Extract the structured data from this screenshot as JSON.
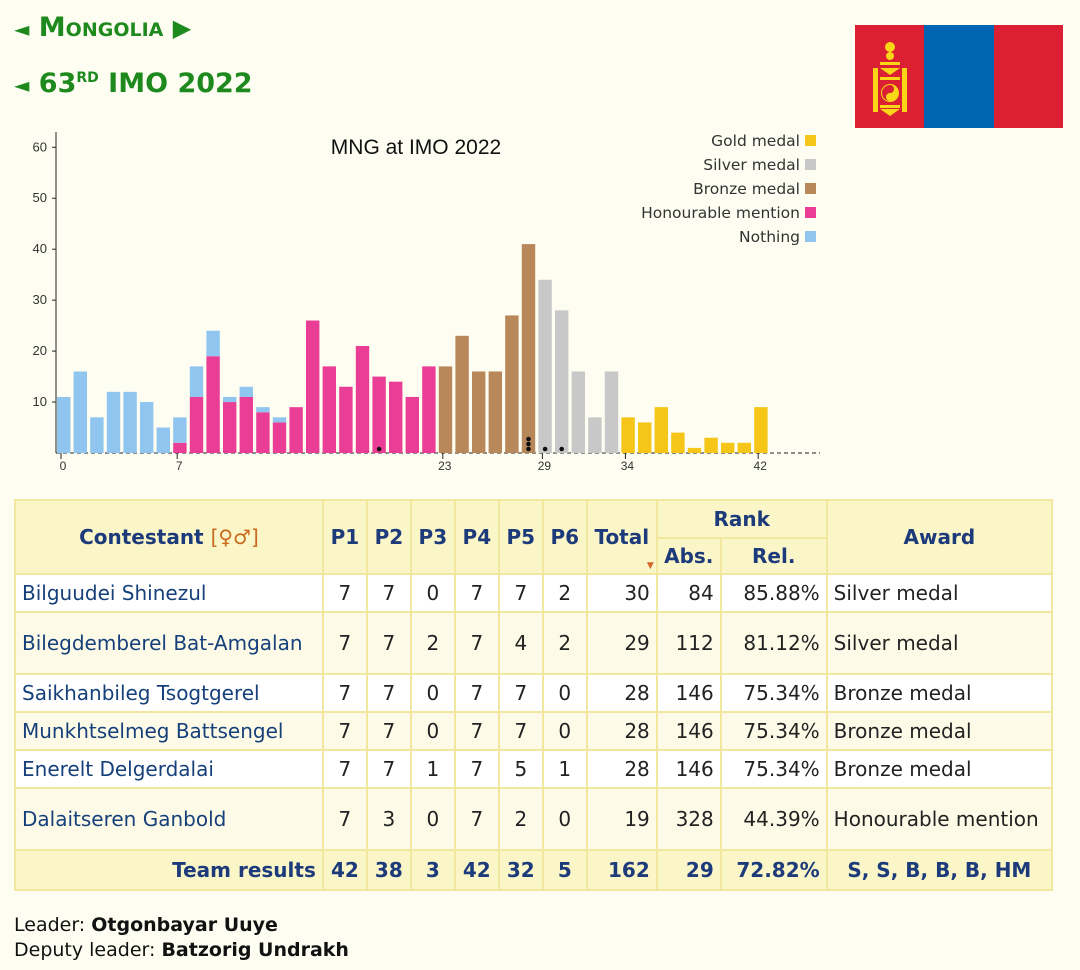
{
  "nav": {
    "country": "Mongolia",
    "edition_num": "63",
    "edition_sup": "RD",
    "edition_rest": " IMO 2022"
  },
  "flag_colors": [
    "#da2032",
    "#0066b3",
    "#da2032"
  ],
  "chart_data": {
    "type": "bar",
    "title": "MNG at IMO 2022",
    "xlabel": "",
    "ylabel": "",
    "ylim": [
      0,
      63
    ],
    "xlim": [
      0,
      42
    ],
    "yticks": [
      10,
      20,
      30,
      40,
      50,
      60
    ],
    "xticks": [
      0,
      7,
      23,
      29,
      34,
      42
    ],
    "legend_position": "top-right",
    "legend": [
      {
        "label": "Gold medal",
        "color": "#f5c518"
      },
      {
        "label": "Silver medal",
        "color": "#c8c8c8"
      },
      {
        "label": "Bronze medal",
        "color": "#b8875a"
      },
      {
        "label": "Honourable mention",
        "color": "#ea3e96"
      },
      {
        "label": "Nothing",
        "color": "#8fc5ef"
      }
    ],
    "x": [
      0,
      1,
      2,
      3,
      4,
      5,
      6,
      7,
      8,
      9,
      10,
      11,
      12,
      13,
      14,
      15,
      16,
      17,
      18,
      19,
      20,
      21,
      22,
      23,
      24,
      25,
      26,
      27,
      28,
      29,
      30,
      31,
      32,
      33,
      34,
      35,
      36,
      37,
      38,
      39,
      40,
      41,
      42
    ],
    "series": [
      {
        "name": "Honourable mention",
        "values": [
          0,
          0,
          0,
          0,
          0,
          0,
          0,
          2,
          11,
          19,
          10,
          11,
          8,
          6,
          9,
          26,
          17,
          13,
          21,
          15,
          14,
          11,
          17,
          0,
          0,
          0,
          0,
          0,
          0,
          0,
          0,
          0,
          0,
          0,
          0,
          0,
          0,
          0,
          0,
          0,
          0,
          0,
          0
        ]
      },
      {
        "name": "Nothing",
        "values": [
          11,
          16,
          7,
          12,
          12,
          10,
          5,
          5,
          6,
          5,
          1,
          2,
          1,
          1,
          0,
          0,
          0,
          0,
          0,
          0,
          0,
          0,
          0,
          0,
          0,
          0,
          0,
          0,
          0,
          0,
          0,
          0,
          0,
          0,
          0,
          0,
          0,
          0,
          0,
          0,
          0,
          0,
          0
        ]
      },
      {
        "name": "Bronze medal",
        "values": [
          0,
          0,
          0,
          0,
          0,
          0,
          0,
          0,
          0,
          0,
          0,
          0,
          0,
          0,
          0,
          0,
          0,
          0,
          0,
          0,
          0,
          0,
          0,
          17,
          23,
          16,
          16,
          27,
          41,
          0,
          0,
          0,
          0,
          0,
          0,
          0,
          0,
          0,
          0,
          0,
          0,
          0,
          0
        ]
      },
      {
        "name": "Silver medal",
        "values": [
          0,
          0,
          0,
          0,
          0,
          0,
          0,
          0,
          0,
          0,
          0,
          0,
          0,
          0,
          0,
          0,
          0,
          0,
          0,
          0,
          0,
          0,
          0,
          0,
          0,
          0,
          0,
          0,
          0,
          34,
          28,
          16,
          7,
          16,
          0,
          0,
          0,
          0,
          0,
          0,
          0,
          0,
          0
        ]
      },
      {
        "name": "Gold medal",
        "values": [
          0,
          0,
          0,
          0,
          0,
          0,
          0,
          0,
          0,
          0,
          0,
          0,
          0,
          0,
          0,
          0,
          0,
          0,
          0,
          0,
          0,
          0,
          0,
          0,
          0,
          0,
          0,
          0,
          0,
          0,
          0,
          0,
          0,
          0,
          7,
          6,
          9,
          4,
          1,
          3,
          2,
          2,
          9
        ]
      }
    ],
    "team_marks": [
      {
        "x": 19,
        "count": 1
      },
      {
        "x": 28,
        "count": 3
      },
      {
        "x": 29,
        "count": 1
      },
      {
        "x": 30,
        "count": 1
      }
    ]
  },
  "table": {
    "headers": {
      "contestant": "Contestant",
      "gender": "[♀♂]",
      "problems": [
        "P1",
        "P2",
        "P3",
        "P4",
        "P5",
        "P6"
      ],
      "total": "Total",
      "rank": "Rank",
      "abs": "Abs.",
      "rel": "Rel.",
      "award": "Award"
    },
    "rows": [
      {
        "name": "Bilguudei Shinezul",
        "scores": [
          "7",
          "7",
          "0",
          "7",
          "7",
          "2"
        ],
        "total": "30",
        "abs": "84",
        "rel": "85.88%",
        "award": "Silver medal"
      },
      {
        "name": "Bilegdemberel Bat-Amgalan",
        "scores": [
          "7",
          "7",
          "2",
          "7",
          "4",
          "2"
        ],
        "total": "29",
        "abs": "112",
        "rel": "81.12%",
        "award": "Silver medal"
      },
      {
        "name": "Saikhanbileg Tsogtgerel",
        "scores": [
          "7",
          "7",
          "0",
          "7",
          "7",
          "0"
        ],
        "total": "28",
        "abs": "146",
        "rel": "75.34%",
        "award": "Bronze medal"
      },
      {
        "name": "Munkhtselmeg Battsengel",
        "scores": [
          "7",
          "7",
          "0",
          "7",
          "7",
          "0"
        ],
        "total": "28",
        "abs": "146",
        "rel": "75.34%",
        "award": "Bronze medal"
      },
      {
        "name": "Enerelt Delgerdalai",
        "scores": [
          "7",
          "7",
          "1",
          "7",
          "5",
          "1"
        ],
        "total": "28",
        "abs": "146",
        "rel": "75.34%",
        "award": "Bronze medal"
      },
      {
        "name": "Dalaitseren Ganbold",
        "scores": [
          "7",
          "3",
          "0",
          "7",
          "2",
          "0"
        ],
        "total": "19",
        "abs": "328",
        "rel": "44.39%",
        "award": "Honourable mention"
      }
    ],
    "team": {
      "label": "Team results",
      "scores": [
        "42",
        "38",
        "3",
        "42",
        "32",
        "5"
      ],
      "total": "162",
      "abs": "29",
      "rel": "72.82%",
      "award": "S, S, B, B, B, HM"
    }
  },
  "leaders": {
    "leader_label": "Leader:",
    "leader_name": "Otgonbayar Uuye",
    "deputy_label": "Deputy leader:",
    "deputy_name": "Batzorig Undrakh"
  }
}
